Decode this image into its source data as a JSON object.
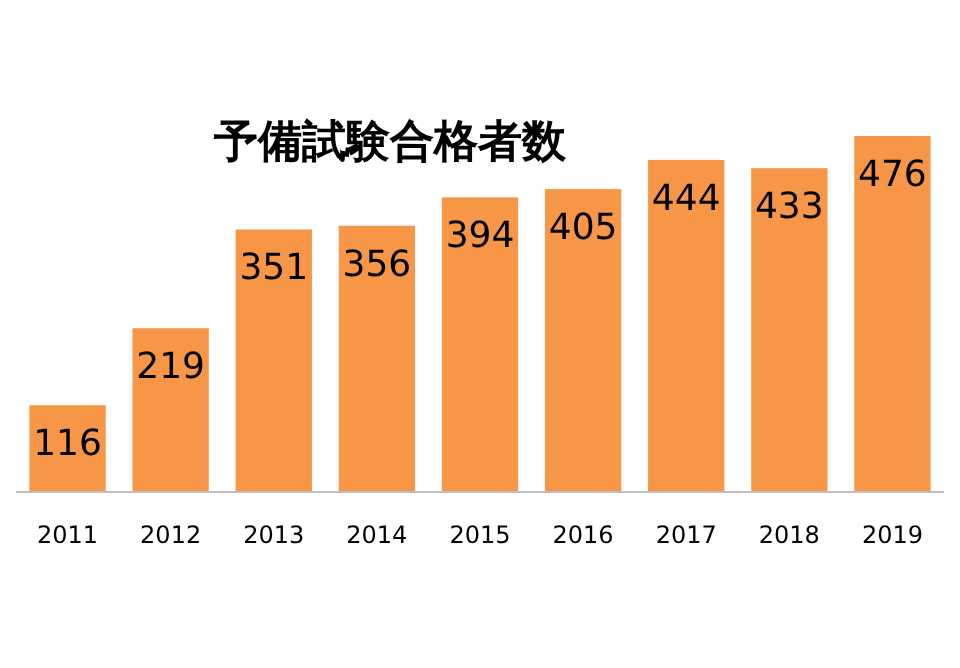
{
  "chart_data": {
    "type": "bar",
    "title": "予備試験合格者数",
    "categories": [
      "2011",
      "2012",
      "2013",
      "2014",
      "2015",
      "2016",
      "2017",
      "2018",
      "2019"
    ],
    "values": [
      116,
      219,
      351,
      356,
      394,
      405,
      444,
      433,
      476
    ],
    "color": "#f79646",
    "data_labels": true
  }
}
